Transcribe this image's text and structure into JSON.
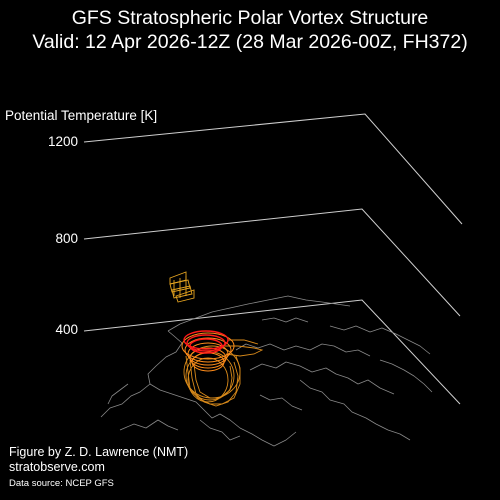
{
  "title": {
    "line1": "GFS Stratospheric Polar Vortex Structure",
    "line2": "Valid: 12 Apr 2026-12Z  (28 Mar 2026-00Z, FH372)"
  },
  "axis": {
    "label": "Potential Temperature [K]",
    "ticks": [
      "400",
      "800",
      "1200"
    ]
  },
  "credits": {
    "figure_by": "Figure by Z. D. Lawrence (NMT)",
    "website": "stratobserve.com",
    "source": "Data source: NCEP GFS"
  },
  "colors": {
    "background": "#000000",
    "text": "#ffffff",
    "frame": "#cfcfcf",
    "coastline": "#8a8a8a",
    "vortex_core": "#ff1a1a",
    "vortex_mid": "#ff8c1a",
    "vortex_outer": "#d98a1a",
    "upper_contour": "#e6a420"
  }
}
